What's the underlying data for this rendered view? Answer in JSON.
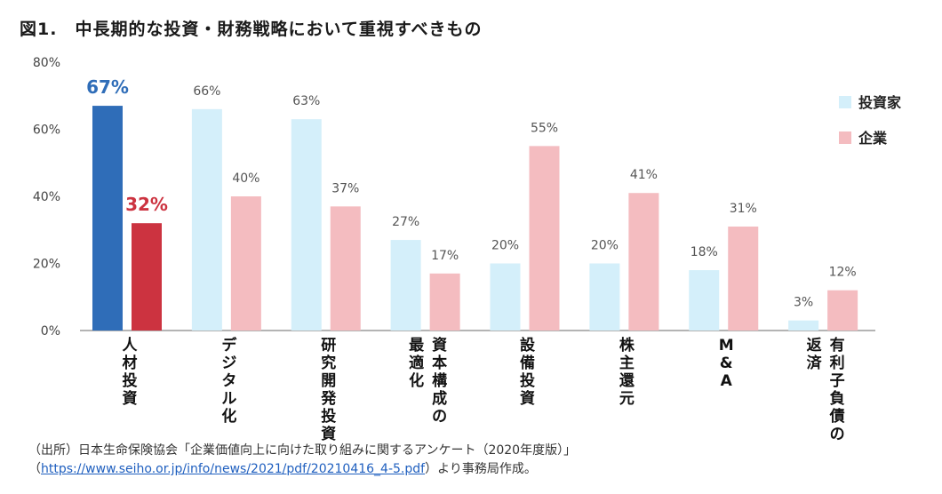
{
  "figure_title": "図1.　中長期的な投資・財務戦略において重視すべきもの",
  "colors": {
    "investor": "#d4effa",
    "company": "#f4bcc0",
    "investor_highlight": "#2f6db8",
    "company_highlight": "#cc3340",
    "highlight_label_investor": "#2f6db8",
    "highlight_label_company": "#cc3340",
    "axis": "#555555",
    "label": "#555555"
  },
  "chart_data": {
    "type": "bar",
    "categories": [
      "人材投資",
      "デジタル化",
      "研究開発投資",
      "資本構成の最適化",
      "設備投資",
      "株主還元",
      "M&A",
      "有利子負債の返済"
    ],
    "category_label_lines": [
      [
        "人材投資"
      ],
      [
        "デジタル化"
      ],
      [
        "研究開発投資"
      ],
      [
        "資本構成の",
        "最適化"
      ],
      [
        "設備投資"
      ],
      [
        "株主還元"
      ],
      [
        "M&A"
      ],
      [
        "有利子負債の",
        "返済"
      ]
    ],
    "series": [
      {
        "name": "投資家",
        "values": [
          67,
          66,
          63,
          27,
          20,
          20,
          18,
          3
        ]
      },
      {
        "name": "企業",
        "values": [
          32,
          40,
          37,
          17,
          55,
          41,
          31,
          12
        ]
      }
    ],
    "value_labels": [
      [
        "67%",
        "66%",
        "63%",
        "27%",
        "20%",
        "20%",
        "18%",
        "3%"
      ],
      [
        "32%",
        "40%",
        "37%",
        "17%",
        "55%",
        "41%",
        "31%",
        "12%"
      ]
    ],
    "highlight_category_index": 0,
    "ylim": [
      0,
      80
    ],
    "yticks": [
      0,
      20,
      40,
      60,
      80
    ],
    "ytick_labels": [
      "0%",
      "20%",
      "40%",
      "60%",
      "80%"
    ],
    "legend_placement": "right",
    "grid": false
  },
  "source": {
    "line1": "（出所）日本生命保険協会「企業価値向上に向けた取り組みに関するアンケート（2020年度版）」",
    "line2_prefix": "（",
    "url": "https://www.seiho.or.jp/info/news/2021/pdf/20210416_4-5.pdf",
    "line2_suffix": "）より事務局作成。"
  }
}
